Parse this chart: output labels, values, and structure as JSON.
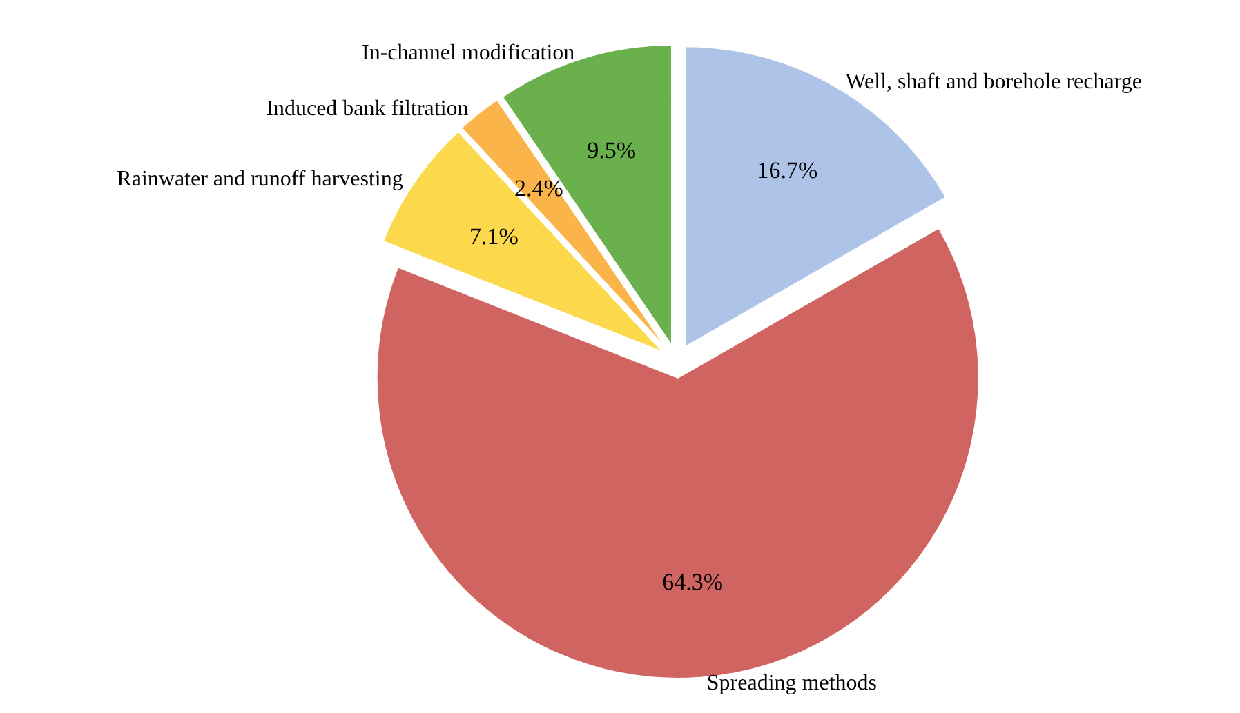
{
  "chart_data": {
    "type": "pie",
    "categories": [
      "Well, shaft and borehole recharge",
      "Spreading methods",
      "Rainwater and runoff harvesting",
      "Induced bank filtration",
      "In-channel modification"
    ],
    "values": [
      16.7,
      64.3,
      7.1,
      2.4,
      9.5
    ],
    "value_labels": [
      "16.7%",
      "64.3%",
      "7.1%",
      "2.4%",
      "9.5%"
    ],
    "colors": [
      "#aec3e8",
      "#d06461",
      "#fcd94c",
      "#fbb44a",
      "#6ab04c"
    ],
    "legend": false
  }
}
